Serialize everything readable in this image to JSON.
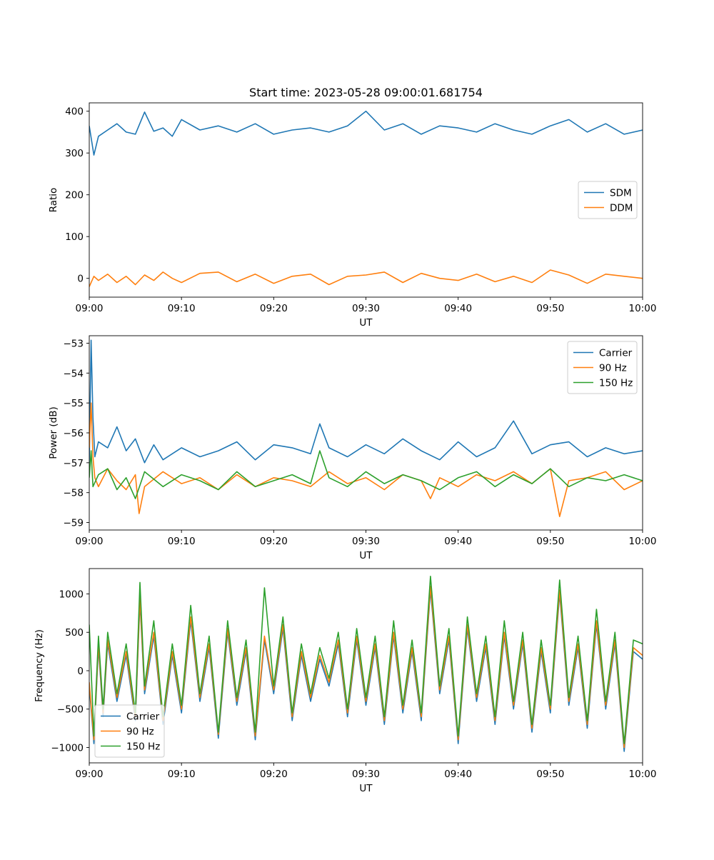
{
  "figure": {
    "title": "Start time: 2023-05-28 09:00:01.681754"
  },
  "colors": {
    "blue": "#1f77b4",
    "orange": "#ff7f0e",
    "green": "#2ca02c"
  },
  "chart_data": [
    {
      "type": "line",
      "title": "Start time: 2023-05-28 09:00:01.681754",
      "xlabel": "UT",
      "ylabel": "Ratio",
      "xlim": [
        0,
        60
      ],
      "ylim": [
        -45,
        420
      ],
      "x_ticks": [
        0,
        10,
        20,
        30,
        40,
        50,
        60
      ],
      "x_tick_labels": [
        "09:00",
        "09:10",
        "09:20",
        "09:30",
        "09:40",
        "09:50",
        "10:00"
      ],
      "y_ticks": [
        0,
        100,
        200,
        300,
        400
      ],
      "y_tick_labels": [
        "0",
        "100",
        "200",
        "300",
        "400"
      ],
      "legend_position": "center-right",
      "grid": false,
      "series": [
        {
          "name": "SDM",
          "color": "#1f77b4",
          "x": [
            0,
            0.5,
            1,
            2,
            3,
            4,
            5,
            6,
            7,
            8,
            9,
            10,
            12,
            14,
            16,
            18,
            20,
            22,
            24,
            26,
            28,
            30,
            32,
            34,
            36,
            38,
            40,
            42,
            44,
            46,
            48,
            50,
            52,
            54,
            56,
            58,
            60
          ],
          "y": [
            365,
            295,
            340,
            355,
            370,
            350,
            345,
            398,
            352,
            360,
            340,
            380,
            355,
            365,
            350,
            370,
            345,
            355,
            360,
            350,
            365,
            400,
            355,
            370,
            345,
            365,
            360,
            350,
            370,
            355,
            345,
            365,
            380,
            350,
            370,
            345,
            355
          ]
        },
        {
          "name": "DDM",
          "color": "#ff7f0e",
          "x": [
            0,
            0.5,
            1,
            2,
            3,
            4,
            5,
            6,
            7,
            8,
            9,
            10,
            12,
            14,
            16,
            18,
            20,
            22,
            24,
            26,
            28,
            30,
            32,
            34,
            36,
            38,
            40,
            42,
            44,
            46,
            48,
            50,
            52,
            54,
            56,
            58,
            60
          ],
          "y": [
            -20,
            5,
            -5,
            10,
            -10,
            5,
            -15,
            8,
            -5,
            15,
            0,
            -10,
            12,
            15,
            -8,
            10,
            -12,
            5,
            10,
            -15,
            5,
            8,
            15,
            -10,
            12,
            0,
            -5,
            10,
            -8,
            5,
            -10,
            20,
            8,
            -12,
            10,
            5,
            0
          ]
        }
      ]
    },
    {
      "type": "line",
      "xlabel": "UT",
      "ylabel": "Power (dB)",
      "xlim": [
        0,
        60
      ],
      "ylim": [
        -59.25,
        -52.75
      ],
      "x_ticks": [
        0,
        10,
        20,
        30,
        40,
        50,
        60
      ],
      "x_tick_labels": [
        "09:00",
        "09:10",
        "09:20",
        "09:30",
        "09:40",
        "09:50",
        "10:00"
      ],
      "y_ticks": [
        -53,
        -54,
        -55,
        -56,
        -57,
        -58,
        -59
      ],
      "y_tick_labels": [
        "−53",
        "−54",
        "−55",
        "−56",
        "−57",
        "−58",
        "−59"
      ],
      "legend_position": "top-right",
      "grid": false,
      "series": [
        {
          "name": "Carrier",
          "color": "#1f77b4",
          "x": [
            0,
            0.2,
            0.4,
            0.6,
            1,
            2,
            3,
            4,
            5,
            6,
            7,
            8,
            10,
            12,
            14,
            16,
            18,
            20,
            22,
            24,
            25,
            26,
            28,
            30,
            32,
            34,
            36,
            38,
            40,
            42,
            44,
            46,
            48,
            50,
            52,
            54,
            56,
            58,
            60
          ],
          "y": [
            -57,
            -52.9,
            -55.5,
            -56.8,
            -56.3,
            -56.5,
            -55.8,
            -56.6,
            -56.2,
            -57.0,
            -56.4,
            -56.9,
            -56.5,
            -56.8,
            -56.6,
            -56.3,
            -56.9,
            -56.4,
            -56.5,
            -56.7,
            -55.7,
            -56.5,
            -56.8,
            -56.4,
            -56.7,
            -56.2,
            -56.6,
            -56.9,
            -56.3,
            -56.8,
            -56.5,
            -55.6,
            -56.7,
            -56.4,
            -56.3,
            -56.8,
            -56.5,
            -56.7,
            -56.6
          ]
        },
        {
          "name": "90 Hz",
          "color": "#ff7f0e",
          "x": [
            0,
            0.2,
            0.4,
            0.6,
            1,
            2,
            3,
            4,
            5,
            5.4,
            6,
            8,
            10,
            12,
            14,
            16,
            18,
            20,
            22,
            24,
            26,
            28,
            30,
            32,
            34,
            36,
            37,
            38,
            40,
            42,
            44,
            46,
            48,
            50,
            51,
            52,
            54,
            56,
            58,
            60
          ],
          "y": [
            -56.5,
            -55,
            -56.8,
            -57.5,
            -57.8,
            -57.2,
            -57.6,
            -57.9,
            -57.4,
            -58.7,
            -57.8,
            -57.3,
            -57.7,
            -57.5,
            -57.9,
            -57.4,
            -57.8,
            -57.5,
            -57.6,
            -57.8,
            -57.3,
            -57.7,
            -57.5,
            -57.9,
            -57.4,
            -57.6,
            -58.2,
            -57.5,
            -57.8,
            -57.4,
            -57.6,
            -57.3,
            -57.7,
            -57.2,
            -58.8,
            -57.6,
            -57.5,
            -57.3,
            -57.9,
            -57.6
          ]
        },
        {
          "name": "150 Hz",
          "color": "#2ca02c",
          "x": [
            0,
            0.2,
            0.4,
            1,
            2,
            3,
            4,
            5,
            6,
            8,
            10,
            12,
            14,
            16,
            18,
            20,
            22,
            24,
            25,
            26,
            28,
            30,
            32,
            34,
            36,
            38,
            40,
            42,
            44,
            46,
            48,
            50,
            52,
            54,
            56,
            58,
            60
          ],
          "y": [
            -57.5,
            -56.6,
            -57.8,
            -57.4,
            -57.2,
            -57.9,
            -57.5,
            -58.2,
            -57.3,
            -57.8,
            -57.4,
            -57.6,
            -57.9,
            -57.3,
            -57.8,
            -57.6,
            -57.4,
            -57.7,
            -56.6,
            -57.5,
            -57.8,
            -57.3,
            -57.7,
            -57.4,
            -57.6,
            -57.9,
            -57.5,
            -57.3,
            -57.8,
            -57.4,
            -57.7,
            -57.2,
            -57.8,
            -57.5,
            -57.6,
            -57.4,
            -57.6
          ]
        }
      ]
    },
    {
      "type": "line",
      "xlabel": "UT",
      "ylabel": "Frequency (Hz)",
      "xlim": [
        0,
        60
      ],
      "ylim": [
        -1200,
        1330
      ],
      "x_ticks": [
        0,
        10,
        20,
        30,
        40,
        50,
        60
      ],
      "x_tick_labels": [
        "09:00",
        "09:10",
        "09:20",
        "09:30",
        "09:40",
        "09:50",
        "10:00"
      ],
      "y_ticks": [
        1000,
        500,
        0,
        -500,
        -1000
      ],
      "y_tick_labels": [
        "1000",
        "500",
        "0",
        "−500",
        "−1000"
      ],
      "legend_position": "bottom-left",
      "grid": false,
      "series": [
        {
          "name": "Carrier",
          "color": "#1f77b4",
          "x": [
            0,
            0.5,
            1,
            1.5,
            2,
            3,
            4,
            5,
            5.5,
            6,
            7,
            8,
            9,
            10,
            11,
            12,
            13,
            14,
            15,
            16,
            17,
            18,
            19,
            20,
            21,
            22,
            23,
            24,
            25,
            26,
            27,
            28,
            29,
            30,
            31,
            32,
            33,
            34,
            35,
            36,
            37,
            38,
            39,
            40,
            41,
            42,
            43,
            44,
            45,
            46,
            47,
            48,
            49,
            50,
            51,
            52,
            53,
            54,
            55,
            56,
            57,
            58,
            59,
            60
          ],
          "y": [
            -200,
            -950,
            300,
            -600,
            350,
            -400,
            200,
            -650,
            900,
            -300,
            450,
            -700,
            200,
            -550,
            650,
            -400,
            300,
            -880,
            500,
            -450,
            250,
            -900,
            400,
            -300,
            550,
            -650,
            200,
            -400,
            150,
            -200,
            350,
            -600,
            400,
            -450,
            300,
            -700,
            450,
            -550,
            250,
            -650,
            1050,
            -300,
            400,
            -950,
            550,
            -400,
            300,
            -700,
            450,
            -500,
            350,
            -800,
            250,
            -550,
            1000,
            -450,
            300,
            -750,
            600,
            -500,
            350,
            -1050,
            250,
            150
          ]
        },
        {
          "name": "90 Hz",
          "color": "#ff7f0e",
          "x": [
            0,
            0.5,
            1,
            1.5,
            2,
            3,
            4,
            5,
            5.5,
            6,
            7,
            8,
            9,
            10,
            11,
            12,
            13,
            14,
            15,
            16,
            17,
            18,
            19,
            20,
            21,
            22,
            23,
            24,
            25,
            26,
            27,
            28,
            29,
            30,
            31,
            32,
            33,
            34,
            35,
            36,
            37,
            38,
            39,
            40,
            41,
            42,
            43,
            44,
            45,
            46,
            47,
            48,
            49,
            50,
            51,
            52,
            53,
            54,
            55,
            56,
            57,
            58,
            59,
            60
          ],
          "y": [
            -150,
            -900,
            350,
            -550,
            400,
            -350,
            250,
            -600,
            950,
            -250,
            500,
            -650,
            250,
            -500,
            700,
            -350,
            350,
            -830,
            550,
            -400,
            300,
            -850,
            450,
            -250,
            600,
            -600,
            250,
            -350,
            200,
            -150,
            400,
            -550,
            450,
            -400,
            350,
            -650,
            500,
            -500,
            300,
            -600,
            1100,
            -250,
            450,
            -900,
            600,
            -350,
            350,
            -650,
            500,
            -450,
            400,
            -750,
            300,
            -500,
            1050,
            -400,
            350,
            -700,
            650,
            -450,
            400,
            -1000,
            300,
            200
          ]
        },
        {
          "name": "150 Hz",
          "color": "#2ca02c",
          "x": [
            0,
            0.5,
            1,
            1.5,
            2,
            3,
            4,
            5,
            5.5,
            6,
            7,
            8,
            9,
            10,
            11,
            12,
            13,
            14,
            15,
            16,
            17,
            18,
            19,
            20,
            21,
            22,
            23,
            24,
            25,
            26,
            27,
            28,
            29,
            30,
            31,
            32,
            33,
            34,
            35,
            36,
            37,
            38,
            39,
            40,
            41,
            42,
            43,
            44,
            45,
            46,
            47,
            48,
            49,
            50,
            51,
            52,
            53,
            54,
            55,
            56,
            57,
            58,
            59,
            60
          ],
          "y": [
            600,
            -850,
            450,
            -500,
            500,
            -300,
            350,
            -550,
            1150,
            -200,
            650,
            -600,
            350,
            -450,
            850,
            -300,
            450,
            -800,
            650,
            -350,
            400,
            -800,
            1080,
            -200,
            700,
            -550,
            350,
            -300,
            300,
            -100,
            500,
            -500,
            550,
            -350,
            450,
            -600,
            650,
            -450,
            400,
            -550,
            1230,
            -200,
            550,
            -850,
            700,
            -300,
            450,
            -600,
            650,
            -400,
            500,
            -700,
            400,
            -450,
            1180,
            -350,
            450,
            -650,
            800,
            -400,
            500,
            -950,
            400,
            350
          ]
        }
      ]
    }
  ]
}
